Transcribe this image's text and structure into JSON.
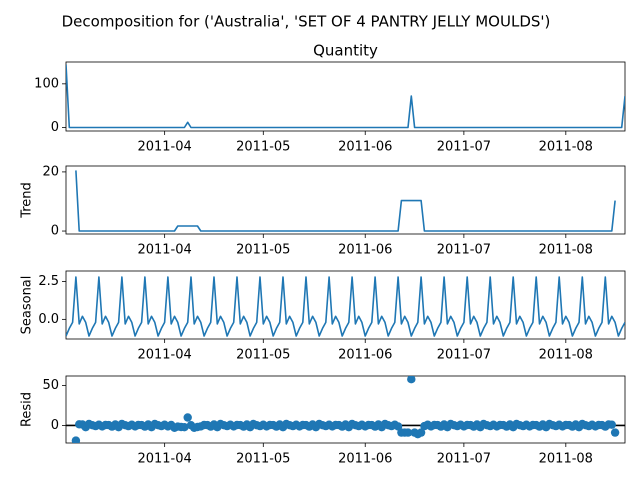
{
  "figure_title": "Decomposition for ('Australia', 'SET OF 4 PANTRY JELLY MOULDS')",
  "chart_data": [
    {
      "type": "line",
      "title": "Quantity",
      "ylabel": "",
      "xlim": [
        "2011-03-02",
        "2011-08-19"
      ],
      "ylim": [
        -8,
        150
      ],
      "yticks": [
        0,
        100
      ],
      "xticks": [
        "2011-04",
        "2011-05",
        "2011-06",
        "2011-07",
        "2011-08"
      ],
      "color": "#1f77b4",
      "series": [
        {
          "x": [
            "2011-03-02",
            "2011-03-03",
            "2011-04-07",
            "2011-04-08",
            "2011-04-09",
            "2011-06-14",
            "2011-06-15",
            "2011-06-16",
            "2011-08-18",
            "2011-08-19"
          ],
          "y": [
            144,
            0,
            0,
            12,
            0,
            0,
            72,
            0,
            0,
            72
          ]
        }
      ]
    },
    {
      "type": "line",
      "title": "",
      "ylabel": "Trend",
      "xlim": [
        "2011-03-02",
        "2011-08-19"
      ],
      "ylim": [
        -1,
        22
      ],
      "yticks": [
        0,
        20
      ],
      "xticks": [
        "2011-04",
        "2011-05",
        "2011-06",
        "2011-07",
        "2011-08"
      ],
      "color": "#1f77b4",
      "series": [
        {
          "x": [
            "2011-03-05",
            "2011-03-06",
            "2011-04-04",
            "2011-04-05",
            "2011-04-11",
            "2011-04-12",
            "2011-06-11",
            "2011-06-12",
            "2011-06-18",
            "2011-06-19",
            "2011-08-15",
            "2011-08-16"
          ],
          "y": [
            20.5,
            0,
            0,
            1.7,
            1.7,
            0,
            0,
            10.3,
            10.3,
            0,
            0,
            10.3
          ]
        }
      ]
    },
    {
      "type": "line",
      "title": "",
      "ylabel": "Seasonal",
      "xlim": [
        "2011-03-02",
        "2011-08-19"
      ],
      "ylim": [
        -1.3,
        3.2
      ],
      "yticks": [
        0.0,
        2.5
      ],
      "xticks": [
        "2011-04",
        "2011-05",
        "2011-06",
        "2011-07",
        "2011-08"
      ],
      "color": "#1f77b4",
      "period_start": "2011-03-02",
      "period_values": [
        -1.1,
        -0.6,
        -0.2,
        2.8,
        -0.3,
        0.2,
        -0.2
      ]
    },
    {
      "type": "scatter",
      "title": "",
      "ylabel": "Resid",
      "xlim": [
        "2011-03-02",
        "2011-08-19"
      ],
      "ylim": [
        -22,
        62
      ],
      "yticks": [
        0,
        50
      ],
      "xticks": [
        "2011-04",
        "2011-05",
        "2011-06",
        "2011-07",
        "2011-08"
      ],
      "color": "#1f77b4",
      "baseline": 0,
      "points_range": [
        "2011-03-05",
        "2011-08-16"
      ],
      "default_pattern": [
        0.5,
        -1.5,
        1.2,
        -2.2,
        1.8,
        0.3,
        -0.8,
        1.0,
        -1.2,
        0.6
      ],
      "outliers": [
        {
          "x": "2011-03-05",
          "y": -19
        },
        {
          "x": "2011-03-06",
          "y": 1.5
        },
        {
          "x": "2011-04-04",
          "y": -3
        },
        {
          "x": "2011-04-06",
          "y": -2
        },
        {
          "x": "2011-04-08",
          "y": 10
        },
        {
          "x": "2011-04-10",
          "y": -3
        },
        {
          "x": "2011-04-11",
          "y": -2
        },
        {
          "x": "2011-06-12",
          "y": -9
        },
        {
          "x": "2011-06-13",
          "y": -9
        },
        {
          "x": "2011-06-14",
          "y": -9
        },
        {
          "x": "2011-06-15",
          "y": 58
        },
        {
          "x": "2011-06-16",
          "y": -9
        },
        {
          "x": "2011-06-17",
          "y": -11
        },
        {
          "x": "2011-06-18",
          "y": -9
        },
        {
          "x": "2011-08-15",
          "y": 1
        },
        {
          "x": "2011-08-16",
          "y": -9
        }
      ]
    }
  ]
}
